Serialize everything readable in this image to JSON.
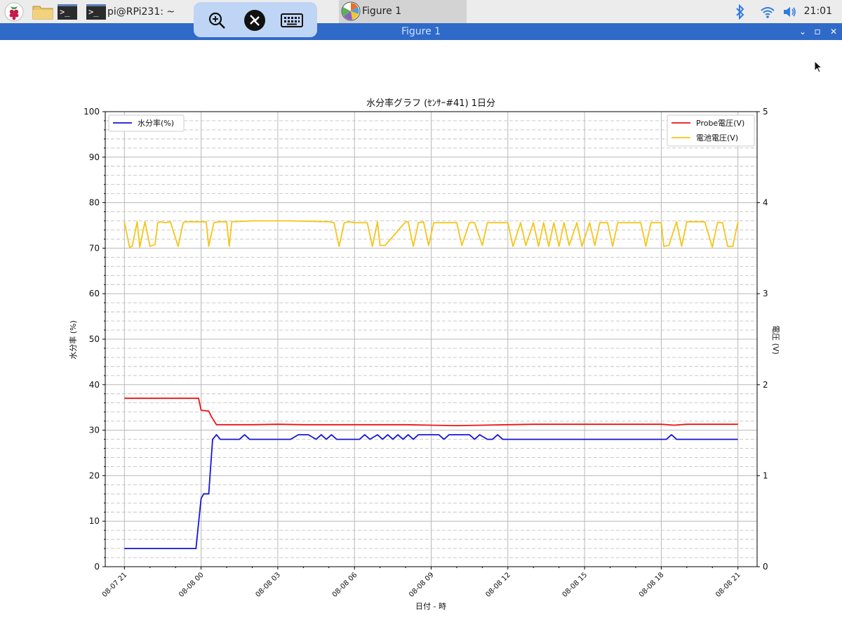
{
  "taskbar": {
    "terminal_title": "pi@RPi231: ~",
    "figure_task": "Figure 1",
    "clock": "21:01"
  },
  "window": {
    "title": "Figure 1",
    "minimize": "⌄",
    "maximize": "▫",
    "close": "✕"
  },
  "icons": {
    "raspberry": "raspberry-pi-menu-icon",
    "folder": "folder-icon",
    "terminal": "terminal-icon",
    "zoom": "zoom-icon",
    "vnc": "vnc-connection-icon",
    "keyboard": "keyboard-icon",
    "bluetooth": "bluetooth-icon",
    "wifi": "wifi-icon",
    "volume": "volume-icon"
  },
  "chart_data": {
    "type": "line",
    "title": "水分率グラフ (ｾﾝｻｰ#41) 1日分",
    "xlabel": "日付 - 時",
    "ylabel_left": "水分率 (%)",
    "ylabel_right": "電圧 (V)",
    "ylim_left": [
      0,
      100
    ],
    "ylim_right": [
      0,
      5
    ],
    "yticks_left": [
      "0",
      "10",
      "20",
      "30",
      "40",
      "50",
      "60",
      "70",
      "80",
      "90",
      "100"
    ],
    "yticks_right": [
      "0",
      "1",
      "2",
      "3",
      "4",
      "5"
    ],
    "xticks": [
      "08-07 21",
      "08-08 00",
      "08-08 03",
      "08-08 06",
      "08-08 09",
      "08-08 12",
      "08-08 15",
      "08-08 18",
      "08-08 21"
    ],
    "xlim_hours": [
      -0.75,
      24.75
    ],
    "grid": true,
    "legend_left": "top-left",
    "legend_right": "top-right",
    "colors": {
      "moisture": "#1515d8",
      "probe": "#ee1111",
      "battery": "#f5c518"
    },
    "series": [
      {
        "name": "水分率(%)",
        "axis": "left",
        "x": [
          0,
          2.8,
          3.0,
          3.1,
          3.3,
          3.45,
          3.6,
          3.75,
          3.9,
          4.5,
          4.7,
          4.9,
          6.5,
          6.8,
          7.0,
          7.2,
          7.5,
          7.7,
          7.9,
          8.1,
          8.3,
          8.5,
          8.7,
          9.2,
          9.4,
          9.6,
          9.9,
          10.1,
          10.3,
          10.5,
          10.7,
          10.9,
          11.1,
          11.3,
          11.5,
          11.7,
          11.9,
          12.1,
          12.3,
          12.5,
          12.7,
          13.0,
          13.5,
          13.7,
          13.9,
          14.2,
          14.4,
          14.6,
          14.8,
          15.0,
          15.3,
          15.5,
          15.7,
          16.0,
          16.2,
          16.5,
          16.7,
          21.2,
          21.4,
          21.6,
          24.0
        ],
        "y": [
          4,
          4,
          15,
          16,
          16,
          28,
          29,
          28,
          28,
          28,
          29,
          28,
          28,
          29,
          29,
          29,
          28,
          29,
          28,
          29,
          28,
          28,
          28,
          28,
          29,
          28,
          29,
          28,
          29,
          28,
          29,
          28,
          29,
          28,
          29,
          29,
          29,
          29,
          29,
          28,
          29,
          29,
          29,
          28,
          29,
          28,
          28,
          29,
          28,
          28,
          28,
          28,
          28,
          28,
          28,
          28,
          28,
          28,
          29,
          28,
          28
        ]
      },
      {
        "name": "Probe電圧(V)",
        "axis": "right",
        "x": [
          0,
          2.9,
          3.0,
          3.3,
          3.4,
          3.6,
          4.0,
          5.0,
          6.0,
          7.0,
          8.0,
          9.0,
          10.0,
          11.0,
          12.0,
          13.0,
          14.0,
          15.0,
          16.0,
          17.0,
          18.0,
          19.0,
          21.0,
          21.5,
          22.0,
          23.0,
          24.0
        ],
        "y": [
          1.85,
          1.85,
          1.72,
          1.71,
          1.65,
          1.56,
          1.56,
          1.56,
          1.565,
          1.56,
          1.56,
          1.56,
          1.56,
          1.56,
          1.555,
          1.55,
          1.555,
          1.56,
          1.565,
          1.565,
          1.565,
          1.565,
          1.565,
          1.555,
          1.565,
          1.565,
          1.565
        ]
      },
      {
        "name": "電池電圧(V)",
        "axis": "right",
        "x": [
          0,
          0.2,
          0.3,
          0.5,
          0.6,
          0.8,
          1.0,
          1.2,
          1.3,
          1.4,
          1.6,
          1.8,
          2.1,
          2.3,
          2.4,
          3.2,
          3.3,
          3.5,
          3.7,
          4.0,
          4.1,
          4.2,
          5.0,
          6.5,
          8.0,
          8.2,
          8.4,
          8.6,
          8.8,
          9.0,
          9.5,
          9.7,
          9.9,
          10.0,
          10.2,
          11.0,
          11.1,
          11.3,
          11.5,
          11.7,
          11.9,
          12.1,
          13.0,
          13.2,
          13.5,
          13.7,
          14.0,
          14.2,
          15.0,
          15.2,
          15.5,
          15.7,
          16.0,
          16.2,
          16.4,
          16.6,
          16.8,
          17.0,
          17.2,
          17.4,
          17.7,
          17.9,
          18.2,
          18.4,
          18.6,
          18.9,
          19.1,
          19.3,
          19.5,
          19.8,
          20.0,
          20.2,
          20.4,
          20.6,
          20.8,
          21.0,
          21.1,
          21.3,
          21.6,
          21.8,
          22.0,
          22.5,
          22.7,
          23.0,
          23.2,
          23.4,
          23.6,
          23.8,
          24.0
        ],
        "y": [
          3.79,
          3.51,
          3.52,
          3.79,
          3.51,
          3.79,
          3.52,
          3.54,
          3.78,
          3.79,
          3.78,
          3.79,
          3.52,
          3.78,
          3.79,
          3.79,
          3.52,
          3.78,
          3.79,
          3.79,
          3.52,
          3.79,
          3.8,
          3.8,
          3.79,
          3.78,
          3.52,
          3.78,
          3.79,
          3.78,
          3.78,
          3.52,
          3.79,
          3.53,
          3.53,
          3.79,
          3.79,
          3.52,
          3.78,
          3.79,
          3.53,
          3.78,
          3.78,
          3.53,
          3.78,
          3.78,
          3.53,
          3.78,
          3.78,
          3.52,
          3.78,
          3.53,
          3.78,
          3.52,
          3.78,
          3.52,
          3.78,
          3.52,
          3.78,
          3.53,
          3.78,
          3.52,
          3.78,
          3.53,
          3.78,
          3.78,
          3.52,
          3.78,
          3.78,
          3.78,
          3.78,
          3.78,
          3.52,
          3.78,
          3.78,
          3.78,
          3.52,
          3.53,
          3.79,
          3.52,
          3.79,
          3.79,
          3.79,
          3.51,
          3.78,
          3.78,
          3.52,
          3.52,
          3.79
        ]
      }
    ]
  }
}
